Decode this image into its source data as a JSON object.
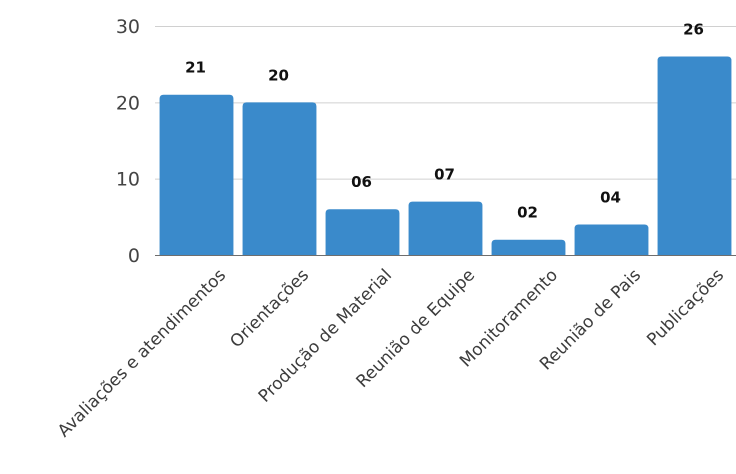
{
  "chart_data": {
    "type": "bar",
    "title": "",
    "xlabel": "",
    "ylabel": "",
    "categories": [
      "Avaliações e atendimentos",
      "Orientações",
      "Produção de Material",
      "Reunião de Equipe",
      "Monitoramento",
      "Reunião de Pais",
      "Publicações"
    ],
    "values": [
      21,
      20,
      6,
      7,
      2,
      4,
      26
    ],
    "data_labels": [
      "21",
      "20",
      "06",
      "07",
      "02",
      "04",
      "26"
    ],
    "ylim": [
      0,
      30
    ],
    "yticks": [
      0,
      10,
      20,
      30
    ],
    "grid": true,
    "legend": "none",
    "bar_color": "#3a8acb"
  }
}
